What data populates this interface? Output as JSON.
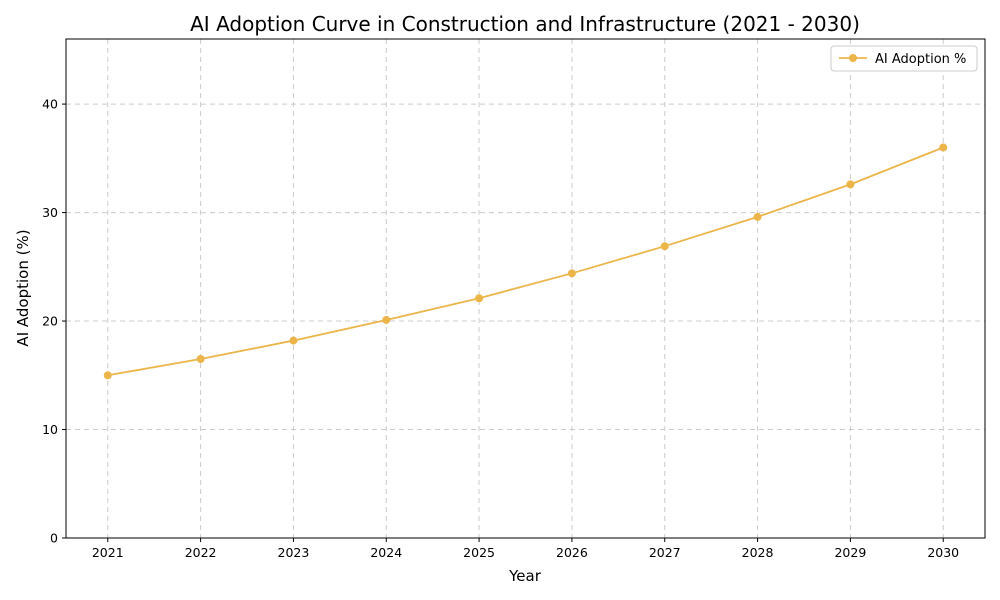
{
  "chart_data": {
    "type": "line",
    "title": "AI Adoption Curve in Construction and Infrastructure (2021 - 2030)",
    "xlabel": "Year",
    "ylabel": "AI Adoption (%)",
    "x": [
      2021,
      2022,
      2023,
      2024,
      2025,
      2026,
      2027,
      2028,
      2029,
      2030
    ],
    "x_tick_labels": [
      "2021",
      "2022",
      "2023",
      "2024",
      "2025",
      "2026",
      "2027",
      "2028",
      "2029",
      "2030"
    ],
    "y_ticks": [
      0,
      10,
      20,
      30,
      40
    ],
    "y_tick_labels": [
      "0",
      "10",
      "20",
      "30",
      "40"
    ],
    "xlim": [
      2020.55,
      2030.45
    ],
    "ylim": [
      0,
      46
    ],
    "grid": true,
    "legend_position": "upper right",
    "series": [
      {
        "name": "AI Adoption %",
        "color": "#EBB54A",
        "marker": "circle",
        "values": [
          15.0,
          16.5,
          18.2,
          20.1,
          22.1,
          24.4,
          26.9,
          29.6,
          32.6,
          36.0
        ]
      }
    ]
  }
}
